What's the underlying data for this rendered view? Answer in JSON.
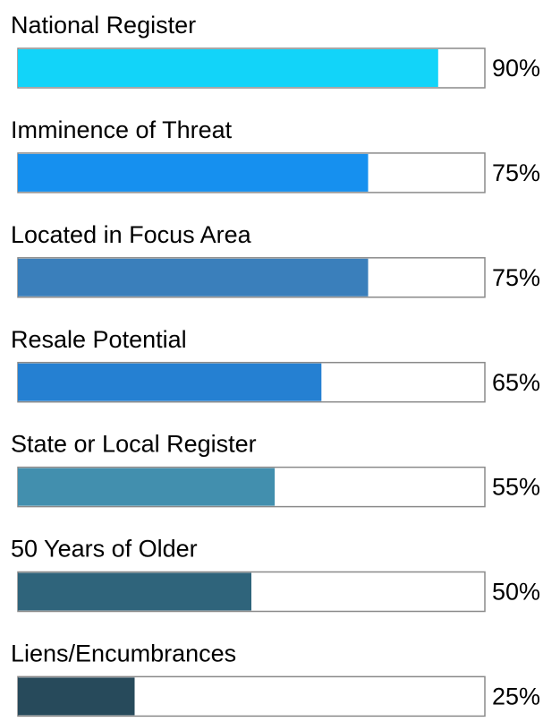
{
  "chart_data": {
    "type": "bar",
    "orientation": "horizontal",
    "categories": [
      "National Register",
      "Imminence of Threat",
      "Located in Focus Area",
      "Resale Potential",
      "State or Local Register",
      "50 Years of Older",
      "Liens/Encumbrances"
    ],
    "values": [
      90,
      75,
      75,
      65,
      55,
      50,
      25
    ],
    "value_labels": [
      "90%",
      "75%",
      "75%",
      "65%",
      "55%",
      "50%",
      "25%"
    ],
    "colors": [
      "#12d4f9",
      "#1690ef",
      "#3a7fbb",
      "#2580d2",
      "#428fae",
      "#2f647b",
      "#274a5b"
    ],
    "xlim": [
      0,
      100
    ]
  }
}
